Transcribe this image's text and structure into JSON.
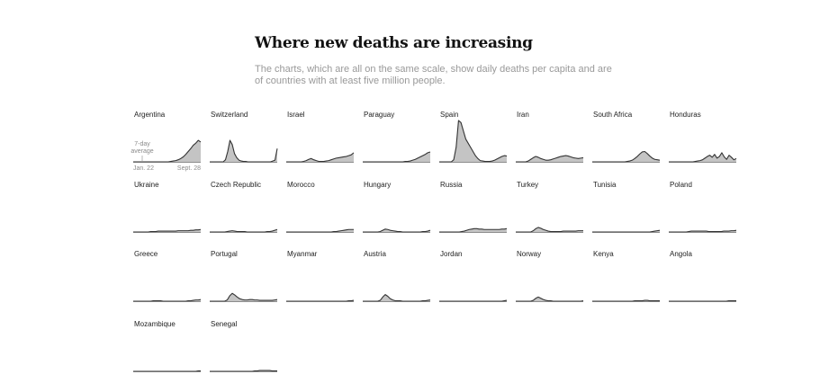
{
  "header": {
    "title": "Where new deaths are increasing",
    "subtitle": "The charts, which are all on the same scale, show daily deaths per capita and are of countries with at least five million people."
  },
  "key": {
    "avg_line1": "7-day",
    "avg_line2": "average",
    "start_label": "Jan. 22",
    "end_label": "Sept. 28"
  },
  "colors": {
    "line": "#333333",
    "fill": "#c4c4c4",
    "axis": "#999999"
  },
  "chart_data": {
    "type": "area",
    "shared_scale": true,
    "x_range": [
      "Jan. 22",
      "Sept. 28"
    ],
    "y_label": "daily deaths per capita (7-day average)",
    "y_range": [
      0,
      10
    ],
    "series": [
      {
        "name": "Argentina",
        "values": [
          0,
          0,
          0,
          0,
          0,
          0,
          0,
          0,
          0,
          0,
          0,
          0,
          0,
          0,
          0,
          0.1,
          0.2,
          0.3,
          0.5,
          0.8,
          1.2,
          1.8,
          2.5,
          3.2,
          4.0,
          4.5,
          5.2,
          4.8
        ]
      },
      {
        "name": "Switzerland",
        "values": [
          0,
          0,
          0,
          0,
          0,
          0,
          0,
          0.5,
          2.5,
          5.2,
          4.2,
          2.0,
          1.0,
          0.4,
          0.2,
          0.1,
          0.1,
          0,
          0,
          0,
          0,
          0,
          0,
          0,
          0,
          0,
          0,
          0,
          0.2,
          0.4,
          3.2
        ]
      },
      {
        "name": "Israel",
        "values": [
          0,
          0,
          0,
          0,
          0,
          0,
          0,
          0.1,
          0.3,
          0.6,
          0.8,
          0.5,
          0.3,
          0.1,
          0.1,
          0.1,
          0.2,
          0.3,
          0.5,
          0.7,
          0.9,
          1.0,
          1.1,
          1.2,
          1.3,
          1.5,
          1.7,
          2.2
        ]
      },
      {
        "name": "Paraguay",
        "values": [
          0,
          0,
          0,
          0,
          0,
          0,
          0,
          0,
          0,
          0,
          0,
          0,
          0,
          0,
          0,
          0,
          0,
          0.1,
          0.1,
          0.2,
          0.4,
          0.6,
          0.9,
          1.2,
          1.5,
          1.8,
          2.2,
          2.4
        ]
      },
      {
        "name": "Spain",
        "values": [
          0,
          0,
          0,
          0,
          0,
          0,
          0.5,
          3.5,
          10.0,
          9.5,
          7.5,
          5.5,
          4.5,
          3.5,
          2.5,
          1.5,
          0.8,
          0.3,
          0.2,
          0.1,
          0.1,
          0.1,
          0.2,
          0.4,
          0.7,
          1.0,
          1.3,
          1.5,
          1.4
        ]
      },
      {
        "name": "Iran",
        "values": [
          0,
          0,
          0,
          0,
          0,
          0.2,
          0.6,
          1.0,
          1.3,
          1.1,
          0.8,
          0.6,
          0.4,
          0.4,
          0.5,
          0.7,
          0.9,
          1.1,
          1.3,
          1.4,
          1.5,
          1.4,
          1.2,
          1.0,
          0.9,
          0.8,
          0.9,
          1.0
        ]
      },
      {
        "name": "South Africa",
        "values": [
          0,
          0,
          0,
          0,
          0,
          0,
          0,
          0,
          0,
          0,
          0,
          0,
          0,
          0,
          0.1,
          0.2,
          0.4,
          0.8,
          1.3,
          1.9,
          2.4,
          2.5,
          2.0,
          1.4,
          0.9,
          0.6,
          0.5,
          0.4
        ]
      },
      {
        "name": "Honduras",
        "values": [
          0,
          0,
          0,
          0,
          0,
          0,
          0,
          0,
          0,
          0,
          0,
          0.1,
          0.2,
          0.3,
          0.5,
          0.9,
          1.3,
          1.6,
          1.1,
          1.8,
          0.9,
          1.3,
          2.2,
          1.2,
          0.6,
          1.6,
          1.1,
          0.5,
          0.8
        ]
      },
      {
        "name": "Ukraine",
        "values": [
          0,
          0,
          0,
          0,
          0,
          0,
          0,
          0.1,
          0.1,
          0.1,
          0.2,
          0.2,
          0.2,
          0.2,
          0.2,
          0.2,
          0.2,
          0.2,
          0.3,
          0.3,
          0.3,
          0.3,
          0.3,
          0.4,
          0.4,
          0.5,
          0.5,
          0.6
        ]
      },
      {
        "name": "Czech Republic",
        "values": [
          0,
          0,
          0,
          0,
          0,
          0,
          0,
          0.1,
          0.2,
          0.3,
          0.2,
          0.1,
          0.1,
          0.1,
          0.1,
          0,
          0,
          0,
          0,
          0,
          0,
          0,
          0,
          0.1,
          0.1,
          0.2,
          0.4,
          0.6
        ]
      },
      {
        "name": "Morocco",
        "values": [
          0,
          0,
          0,
          0,
          0,
          0,
          0,
          0,
          0,
          0,
          0,
          0,
          0,
          0,
          0,
          0,
          0,
          0,
          0,
          0.1,
          0.1,
          0.2,
          0.3,
          0.4,
          0.5,
          0.6,
          0.6,
          0.6
        ]
      },
      {
        "name": "Hungary",
        "values": [
          0,
          0,
          0,
          0,
          0,
          0,
          0,
          0.1,
          0.4,
          0.7,
          0.6,
          0.4,
          0.3,
          0.2,
          0.1,
          0.1,
          0,
          0,
          0,
          0,
          0,
          0,
          0,
          0,
          0.1,
          0.1,
          0.2,
          0.4
        ]
      },
      {
        "name": "Russia",
        "values": [
          0,
          0,
          0,
          0,
          0,
          0,
          0,
          0,
          0,
          0.1,
          0.2,
          0.4,
          0.6,
          0.7,
          0.8,
          0.8,
          0.7,
          0.7,
          0.6,
          0.6,
          0.6,
          0.6,
          0.6,
          0.6,
          0.6,
          0.7,
          0.7,
          0.8
        ]
      },
      {
        "name": "Turkey",
        "values": [
          0,
          0,
          0,
          0,
          0,
          0,
          0,
          0.3,
          0.8,
          1.1,
          0.9,
          0.6,
          0.4,
          0.2,
          0.1,
          0.1,
          0.1,
          0.1,
          0.1,
          0.2,
          0.2,
          0.2,
          0.2,
          0.2,
          0.2,
          0.3,
          0.3,
          0.3
        ]
      },
      {
        "name": "Tunisia",
        "values": [
          0,
          0,
          0,
          0,
          0,
          0,
          0,
          0,
          0,
          0,
          0,
          0,
          0,
          0,
          0,
          0,
          0,
          0,
          0,
          0,
          0,
          0,
          0,
          0,
          0.1,
          0.2,
          0.3,
          0.4
        ]
      },
      {
        "name": "Poland",
        "values": [
          0,
          0,
          0,
          0,
          0,
          0,
          0,
          0,
          0.1,
          0.2,
          0.2,
          0.2,
          0.2,
          0.2,
          0.2,
          0.2,
          0.1,
          0.1,
          0.1,
          0.1,
          0.1,
          0.1,
          0.2,
          0.2,
          0.2,
          0.3,
          0.3,
          0.4
        ]
      },
      {
        "name": "Greece",
        "values": [
          0,
          0,
          0,
          0,
          0,
          0,
          0,
          0,
          0.1,
          0.1,
          0.1,
          0.1,
          0,
          0,
          0,
          0,
          0,
          0,
          0,
          0,
          0,
          0,
          0.1,
          0.1,
          0.2,
          0.3,
          0.3,
          0.4
        ]
      },
      {
        "name": "Portugal",
        "values": [
          0,
          0,
          0,
          0,
          0,
          0,
          0,
          0.3,
          1.3,
          1.9,
          1.5,
          1.0,
          0.6,
          0.4,
          0.3,
          0.3,
          0.4,
          0.4,
          0.3,
          0.3,
          0.2,
          0.2,
          0.2,
          0.2,
          0.2,
          0.2,
          0.3,
          0.4
        ]
      },
      {
        "name": "Myanmar",
        "values": [
          0,
          0,
          0,
          0,
          0,
          0,
          0,
          0,
          0,
          0,
          0,
          0,
          0,
          0,
          0,
          0,
          0,
          0,
          0,
          0,
          0,
          0,
          0,
          0,
          0,
          0.1,
          0.1,
          0.2
        ]
      },
      {
        "name": "Austria",
        "values": [
          0,
          0,
          0,
          0,
          0,
          0,
          0,
          0.2,
          1.0,
          1.6,
          1.2,
          0.6,
          0.3,
          0.1,
          0.1,
          0.1,
          0,
          0,
          0,
          0,
          0,
          0,
          0,
          0,
          0.1,
          0.1,
          0.2,
          0.3
        ]
      },
      {
        "name": "Jordan",
        "values": [
          0,
          0,
          0,
          0,
          0,
          0,
          0,
          0,
          0,
          0,
          0,
          0,
          0,
          0,
          0,
          0,
          0,
          0,
          0,
          0,
          0,
          0,
          0,
          0,
          0,
          0,
          0.1,
          0.2
        ]
      },
      {
        "name": "Norway",
        "values": [
          0,
          0,
          0,
          0,
          0,
          0,
          0,
          0.2,
          0.7,
          1.0,
          0.7,
          0.4,
          0.2,
          0.1,
          0.1,
          0,
          0,
          0,
          0,
          0,
          0,
          0,
          0,
          0,
          0,
          0,
          0,
          0.1
        ]
      },
      {
        "name": "Kenya",
        "values": [
          0,
          0,
          0,
          0,
          0,
          0,
          0,
          0,
          0,
          0,
          0,
          0,
          0,
          0,
          0,
          0,
          0,
          0.1,
          0.1,
          0.1,
          0.1,
          0.2,
          0.2,
          0.1,
          0.1,
          0.1,
          0.1,
          0.1
        ]
      },
      {
        "name": "Angola",
        "values": [
          0,
          0,
          0,
          0,
          0,
          0,
          0,
          0,
          0,
          0,
          0,
          0,
          0,
          0,
          0,
          0,
          0,
          0,
          0,
          0,
          0,
          0,
          0,
          0,
          0.1,
          0.1,
          0.1,
          0.1
        ]
      },
      {
        "name": "Mozambique",
        "values": [
          0,
          0,
          0,
          0,
          0,
          0,
          0,
          0,
          0,
          0,
          0,
          0,
          0,
          0,
          0,
          0,
          0,
          0,
          0,
          0,
          0,
          0,
          0,
          0,
          0,
          0,
          0.1,
          0.1
        ]
      },
      {
        "name": "Senegal",
        "values": [
          0,
          0,
          0,
          0,
          0,
          0,
          0,
          0,
          0,
          0,
          0,
          0,
          0,
          0,
          0,
          0,
          0,
          0,
          0.1,
          0.1,
          0.2,
          0.2,
          0.2,
          0.2,
          0.2,
          0.1,
          0.1,
          0.1
        ]
      }
    ]
  }
}
